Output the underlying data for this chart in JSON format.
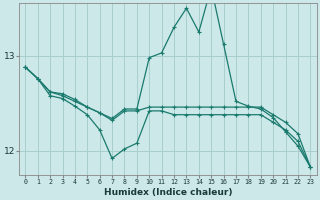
{
  "xlabel": "Humidex (Indice chaleur)",
  "background_color": "#cce8e8",
  "grid_color": "#a8cece",
  "line_color": "#1a7a6e",
  "xlim": [
    -0.5,
    23.5
  ],
  "ylim": [
    11.75,
    13.55
  ],
  "yticks": [
    12,
    13
  ],
  "xticks": [
    0,
    1,
    2,
    3,
    4,
    5,
    6,
    7,
    8,
    9,
    10,
    11,
    12,
    13,
    14,
    15,
    16,
    17,
    18,
    19,
    20,
    21,
    22,
    23
  ],
  "series1_x": [
    0,
    1,
    2,
    3,
    4,
    5,
    6,
    7,
    8,
    9,
    10,
    11,
    12,
    13,
    14,
    15,
    16,
    17,
    18,
    19,
    20,
    21,
    22,
    23
  ],
  "series1_y": [
    12.88,
    12.76,
    12.58,
    12.55,
    12.47,
    12.38,
    12.22,
    11.92,
    12.02,
    12.08,
    12.42,
    12.42,
    12.38,
    12.38,
    12.38,
    12.38,
    12.38,
    12.38,
    12.38,
    12.38,
    12.3,
    12.22,
    12.1,
    11.83
  ],
  "series2_x": [
    0,
    1,
    2,
    3,
    4,
    5,
    6,
    7,
    8,
    9,
    10,
    11,
    12,
    13,
    14,
    15,
    16,
    17,
    18,
    19,
    20,
    21,
    22,
    23
  ],
  "series2_y": [
    12.88,
    12.76,
    12.62,
    12.6,
    12.54,
    12.46,
    12.4,
    12.34,
    12.44,
    12.44,
    12.98,
    13.03,
    13.3,
    13.5,
    13.25,
    13.72,
    13.12,
    12.52,
    12.47,
    12.44,
    12.35,
    12.2,
    12.05,
    11.83
  ],
  "series3_x": [
    0,
    1,
    2,
    3,
    4,
    5,
    6,
    7,
    8,
    9,
    10,
    11,
    12,
    13,
    14,
    15,
    16,
    17,
    18,
    19,
    20,
    21,
    22,
    23
  ],
  "series3_y": [
    12.88,
    12.76,
    12.62,
    12.58,
    12.52,
    12.46,
    12.4,
    12.32,
    12.42,
    12.42,
    12.46,
    12.46,
    12.46,
    12.46,
    12.46,
    12.46,
    12.46,
    12.46,
    12.46,
    12.46,
    12.38,
    12.3,
    12.18,
    11.83
  ]
}
